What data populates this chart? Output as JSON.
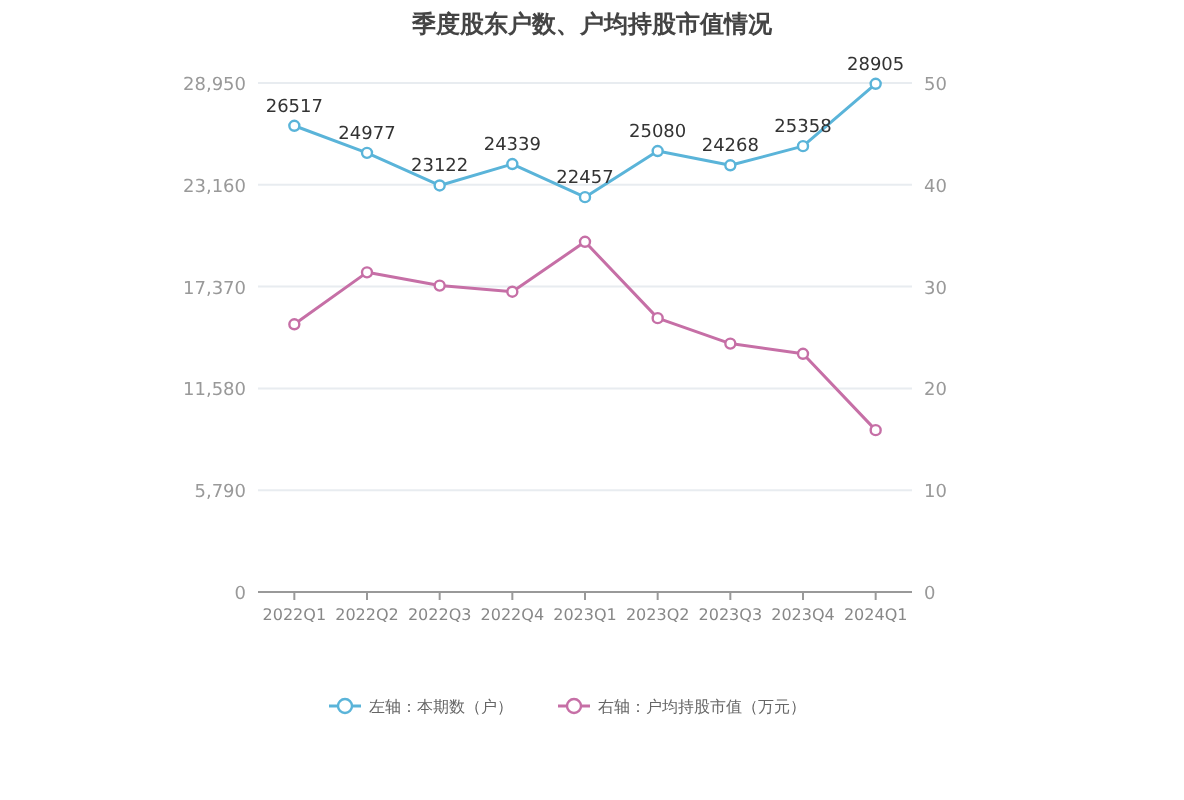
{
  "chart_data": {
    "type": "line",
    "title": "季度股东户数、户均持股市值情况",
    "categories": [
      "2022Q1",
      "2022Q2",
      "2022Q3",
      "2022Q4",
      "2023Q1",
      "2023Q2",
      "2023Q3",
      "2023Q4",
      "2024Q1"
    ],
    "series": [
      {
        "name": "左轴：本期数（户）",
        "color": "#5ab4d9",
        "values": [
          26517,
          24977,
          23122,
          24339,
          22457,
          25080,
          24268,
          25358,
          28905
        ],
        "value_labels": [
          "26517",
          "24977",
          "23122",
          "24339",
          "22457",
          "25080",
          "24268",
          "25358",
          "28905"
        ]
      },
      {
        "name": "右轴：户均持股市值（万元）",
        "color": "#c66fa6",
        "axis": "y2",
        "values": [
          26.3,
          31.4,
          30.1,
          29.5,
          34.4,
          26.9,
          24.4,
          23.4,
          15.9
        ]
      }
    ],
    "ylim": [
      0,
      28950
    ],
    "yticks": [
      0,
      {
        "value": 5790,
        "label": "5,790"
      },
      {
        "value": 11580,
        "label": "11,580"
      },
      {
        "value": 17370,
        "label": "17,370"
      },
      {
        "value": 23160,
        "label": "23,160"
      },
      {
        "value": 28950,
        "label": "28,950"
      }
    ],
    "y2lim": [
      0,
      50
    ],
    "y2ticks": [
      0,
      10,
      20,
      30,
      40,
      50
    ],
    "grid": "y",
    "legend": "bottom",
    "marker": "circle"
  }
}
